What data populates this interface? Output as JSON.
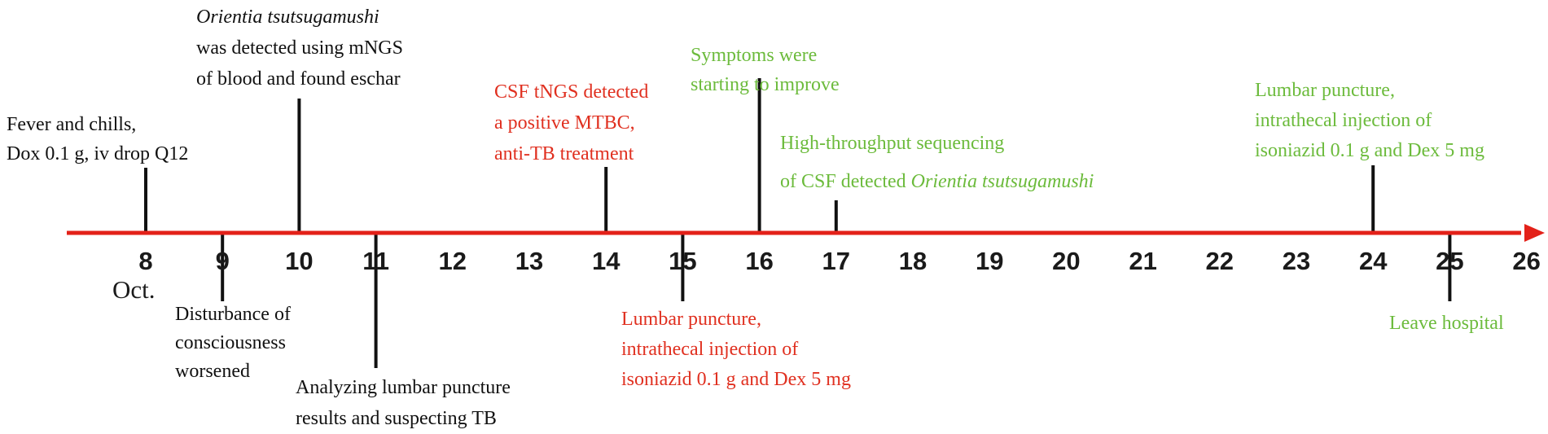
{
  "timeline": {
    "month_label": "Oct.",
    "days": [
      "8",
      "9",
      "10",
      "11",
      "12",
      "13",
      "14",
      "15",
      "16",
      "17",
      "18",
      "19",
      "20",
      "21",
      "22",
      "23",
      "24",
      "25",
      "26"
    ],
    "colors": {
      "axis": "#e32119",
      "tick": "#111111",
      "black": "#111111",
      "red": "#e03020",
      "green": "#6cbb3c"
    }
  },
  "events": [
    {
      "day": "8",
      "color": "black",
      "lines": [
        [
          "Fever and chills,"
        ],
        [
          "Dox 0.1 g, iv drop Q12"
        ]
      ]
    },
    {
      "day": "9",
      "color": "black",
      "lines": [
        [
          "Disturbance of"
        ],
        [
          "consciousness"
        ],
        [
          "worsened"
        ]
      ]
    },
    {
      "day": "10",
      "color": "black",
      "lines": [
        [
          {
            "t": "Orientia tsutsugamushi",
            "i": true
          }
        ],
        [
          "was detected using mNGS"
        ],
        [
          "of blood and found eschar"
        ]
      ]
    },
    {
      "day": "11",
      "color": "black",
      "lines": [
        [
          "Analyzing lumbar puncture"
        ],
        [
          "results and suspecting TB"
        ]
      ]
    },
    {
      "day": "14",
      "color": "red",
      "lines": [
        [
          "CSF tNGS detected"
        ],
        [
          "a positive MTBC,"
        ],
        [
          "anti-TB treatment"
        ]
      ]
    },
    {
      "day": "15",
      "color": "red",
      "lines": [
        [
          "Lumbar puncture,"
        ],
        [
          "intrathecal injection of"
        ],
        [
          "isoniazid 0.1 g and Dex 5 mg"
        ]
      ]
    },
    {
      "day": "16",
      "color": "green",
      "lines": [
        [
          "Symptoms were"
        ],
        [
          "starting to improve"
        ]
      ]
    },
    {
      "day": "17",
      "color": "green",
      "lines": [
        [
          "High-throughput sequencing"
        ],
        [
          "of CSF detected ",
          {
            "t": "Orientia tsutsugamushi",
            "i": true
          }
        ]
      ]
    },
    {
      "day": "24",
      "color": "green",
      "lines": [
        [
          "Lumbar puncture,"
        ],
        [
          "intrathecal  injection of"
        ],
        [
          "isoniazid 0.1 g and  Dex 5 mg"
        ]
      ]
    },
    {
      "day": "25",
      "color": "green",
      "lines": [
        [
          "Leave hospital"
        ]
      ]
    }
  ]
}
